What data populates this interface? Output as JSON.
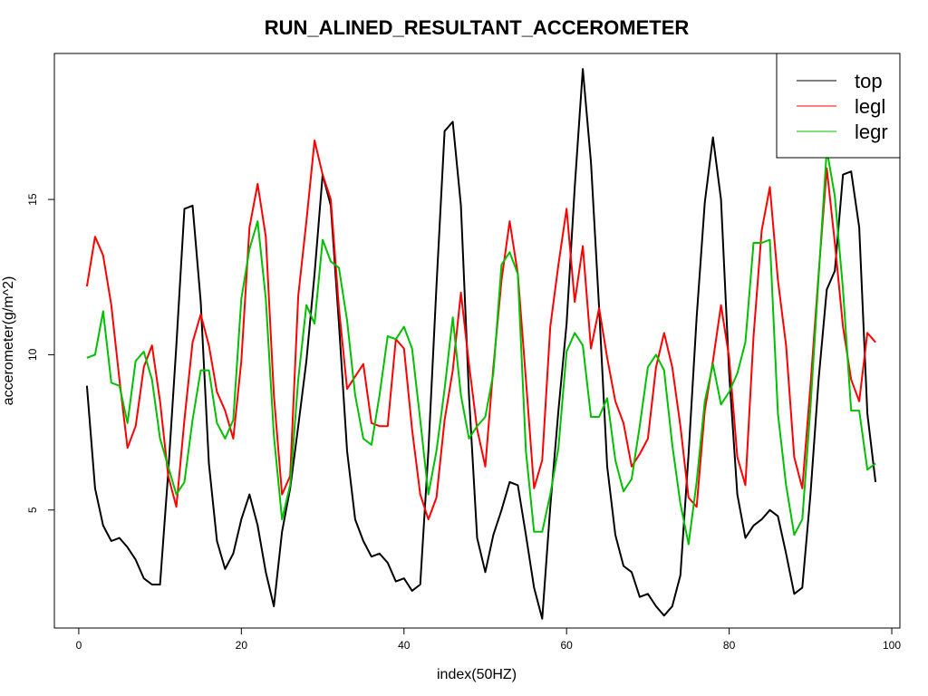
{
  "chart_data": {
    "type": "line",
    "title": "RUN_ALINED_RESULTANT_ACCEROMETER",
    "xlabel": "index(50HZ)",
    "ylabel": "accerometer(g/m^2)",
    "xlim": [
      -3,
      101
    ],
    "ylim": [
      1.2,
      19.7
    ],
    "x_ticks": [
      0,
      20,
      40,
      60,
      80,
      100
    ],
    "y_ticks": [
      5,
      10,
      15
    ],
    "legend_position": "top-right",
    "x": [
      1,
      2,
      3,
      4,
      5,
      6,
      7,
      8,
      9,
      10,
      11,
      12,
      13,
      14,
      15,
      16,
      17,
      18,
      19,
      20,
      21,
      22,
      23,
      24,
      25,
      26,
      27,
      28,
      29,
      30,
      31,
      32,
      33,
      34,
      35,
      36,
      37,
      38,
      39,
      40,
      41,
      42,
      43,
      44,
      45,
      46,
      47,
      48,
      49,
      50,
      51,
      52,
      53,
      54,
      55,
      56,
      57,
      58,
      59,
      60,
      61,
      62,
      63,
      64,
      65,
      66,
      67,
      68,
      69,
      70,
      71,
      72,
      73,
      74,
      75,
      76,
      77,
      78,
      79,
      80,
      81,
      82,
      83,
      84,
      85,
      86,
      87,
      88,
      89,
      90,
      91,
      92,
      93,
      94,
      95,
      96,
      97,
      98
    ],
    "series": [
      {
        "name": "top",
        "color": "#000000",
        "values": [
          9.0,
          5.7,
          4.5,
          4.0,
          4.1,
          3.8,
          3.4,
          2.8,
          2.6,
          2.6,
          6.2,
          10.3,
          14.7,
          14.8,
          11.7,
          6.5,
          4.0,
          3.1,
          3.6,
          4.7,
          5.5,
          4.5,
          3.0,
          1.9,
          4.3,
          5.7,
          7.7,
          9.8,
          12.6,
          15.8,
          14.8,
          11.0,
          6.9,
          4.7,
          4.0,
          3.5,
          3.6,
          3.3,
          2.7,
          2.8,
          2.4,
          2.6,
          6.9,
          12.2,
          17.2,
          17.5,
          14.8,
          8.7,
          4.1,
          3.0,
          4.2,
          5.0,
          5.9,
          5.8,
          4.2,
          2.5,
          1.5,
          5.1,
          8.2,
          11.0,
          15.4,
          19.2,
          16.2,
          11.5,
          6.4,
          4.2,
          3.2,
          3.0,
          2.2,
          2.3,
          1.9,
          1.6,
          1.9,
          2.9,
          6.8,
          11.2,
          14.9,
          17.0,
          15.0,
          9.4,
          5.5,
          4.1,
          4.5,
          4.7,
          5.0,
          4.8,
          3.6,
          2.3,
          2.5,
          5.5,
          9.2,
          12.1,
          12.7,
          15.8,
          15.9,
          14.1,
          8.1,
          5.9
        ]
      },
      {
        "name": "legl",
        "color": "#ff0000",
        "values": [
          12.2,
          13.8,
          13.2,
          11.6,
          9.2,
          7.0,
          7.7,
          9.6,
          10.3,
          8.5,
          6.1,
          5.1,
          7.9,
          10.4,
          11.3,
          10.3,
          8.8,
          8.2,
          7.3,
          9.8,
          14.1,
          15.5,
          13.8,
          8.7,
          5.5,
          6.1,
          11.9,
          14.3,
          16.9,
          15.8,
          15.0,
          11.5,
          8.9,
          9.3,
          9.7,
          7.8,
          7.7,
          7.7,
          10.5,
          10.2,
          7.6,
          5.5,
          4.7,
          5.4,
          7.9,
          9.5,
          12.0,
          9.7,
          7.6,
          6.4,
          9.6,
          12.4,
          14.3,
          12.6,
          9.2,
          5.7,
          6.6,
          10.9,
          12.9,
          14.7,
          11.7,
          13.5,
          10.2,
          11.5,
          9.9,
          8.5,
          7.8,
          6.4,
          6.8,
          7.3,
          9.6,
          10.7,
          9.6,
          7.7,
          5.4,
          5.1,
          8.2,
          9.8,
          11.6,
          9.9,
          6.7,
          5.8,
          10.6,
          14.0,
          15.4,
          12.4,
          10.3,
          6.7,
          5.7,
          9.0,
          12.6,
          16.0,
          13.6,
          10.9,
          9.2,
          8.5,
          10.7,
          10.4
        ]
      },
      {
        "name": "legr",
        "color": "#00c000",
        "values": [
          9.9,
          10.0,
          11.4,
          9.1,
          9.0,
          7.8,
          9.8,
          10.1,
          9.2,
          7.3,
          6.4,
          5.5,
          5.9,
          7.9,
          9.5,
          9.5,
          7.8,
          7.3,
          7.9,
          11.8,
          13.4,
          14.3,
          11.8,
          7.4,
          4.7,
          5.8,
          9.2,
          11.6,
          11.0,
          13.7,
          13.0,
          12.8,
          11.1,
          8.7,
          7.3,
          7.1,
          8.7,
          10.6,
          10.5,
          10.9,
          10.2,
          7.9,
          5.5,
          6.9,
          8.9,
          11.2,
          8.7,
          7.3,
          7.7,
          8.0,
          9.4,
          12.9,
          13.3,
          12.6,
          6.9,
          4.3,
          4.3,
          5.5,
          7.0,
          10.1,
          10.7,
          10.3,
          8.0,
          8.0,
          8.6,
          6.6,
          5.6,
          6.0,
          7.7,
          9.6,
          10.0,
          9.5,
          7.1,
          5.2,
          3.9,
          5.9,
          8.5,
          9.7,
          8.4,
          8.8,
          9.4,
          10.4,
          13.6,
          13.6,
          13.7,
          8.1,
          5.8,
          4.2,
          4.7,
          8.3,
          12.5,
          16.6,
          15.1,
          12.1,
          8.2,
          8.2,
          6.3,
          6.5
        ]
      }
    ]
  }
}
